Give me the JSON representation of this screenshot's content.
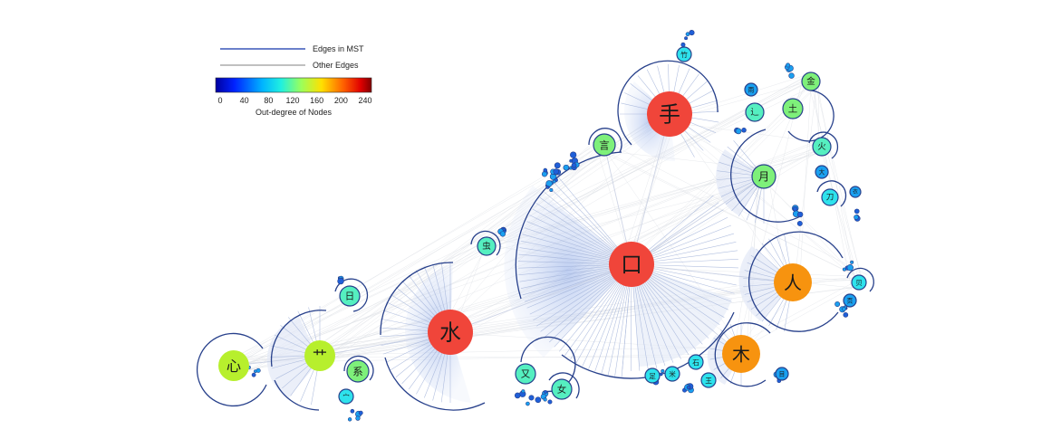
{
  "legend": {
    "mst_label": "Edges in MST",
    "other_label": "Other Edges",
    "colorbar_title": "Out-degree of Nodes",
    "ticks": [
      "0",
      "40",
      "80",
      "120",
      "160",
      "200",
      "240"
    ],
    "mst_color": "#3a57b8",
    "other_color": "#9a9a9a"
  },
  "colors": {
    "red": "#f0453a",
    "orange": "#f7930f",
    "yellow_green": "#b7ef2d",
    "light_green": "#7ef07a",
    "mint": "#55efc0",
    "cyan": "#2ee2ec",
    "blue": "#1aa0f0",
    "dark_blue": "#1f5fd8",
    "ring": "#27408b"
  },
  "nodes": [
    {
      "id": "kou",
      "label": "口",
      "tier": "red"
    },
    {
      "id": "shou",
      "label": "手",
      "tier": "red"
    },
    {
      "id": "shui",
      "label": "水",
      "tier": "red"
    },
    {
      "id": "ren",
      "label": "人",
      "tier": "orange"
    },
    {
      "id": "mu",
      "label": "木",
      "tier": "orange"
    },
    {
      "id": "xin",
      "label": "心",
      "tier": "yellow_green"
    },
    {
      "id": "cao",
      "label": "艹",
      "tier": "yellow_green"
    },
    {
      "id": "yue",
      "label": "月",
      "tier": "light_green"
    },
    {
      "id": "yan",
      "label": "言",
      "tier": "light_green"
    },
    {
      "id": "tu",
      "label": "土",
      "tier": "light_green"
    },
    {
      "id": "jin",
      "label": "金",
      "tier": "light_green"
    },
    {
      "id": "xi",
      "label": "系",
      "tier": "light_green"
    },
    {
      "id": "chong",
      "label": "虫",
      "tier": "mint"
    },
    {
      "id": "ri",
      "label": "日",
      "tier": "mint"
    },
    {
      "id": "huo",
      "label": "火",
      "tier": "mint"
    },
    {
      "id": "you",
      "label": "又",
      "tier": "mint"
    },
    {
      "id": "nv",
      "label": "女",
      "tier": "mint"
    },
    {
      "id": "chuo",
      "label": "辶",
      "tier": "mint"
    },
    {
      "id": "dao",
      "label": "刀",
      "tier": "cyan"
    },
    {
      "id": "bei",
      "label": "贝",
      "tier": "cyan"
    },
    {
      "id": "zhu",
      "label": "竹",
      "tier": "cyan"
    },
    {
      "id": "mian",
      "label": "宀",
      "tier": "cyan"
    },
    {
      "id": "mi",
      "label": "米",
      "tier": "cyan"
    },
    {
      "id": "shi",
      "label": "石",
      "tier": "cyan"
    },
    {
      "id": "wang",
      "label": "王",
      "tier": "cyan"
    },
    {
      "id": "zu",
      "label": "足",
      "tier": "cyan"
    },
    {
      "id": "da",
      "label": "大",
      "tier": "blue"
    },
    {
      "id": "ye",
      "label": "页",
      "tier": "blue"
    },
    {
      "id": "mu4",
      "label": "目",
      "tier": "blue"
    },
    {
      "id": "yu",
      "label": "雨",
      "tier": "blue"
    },
    {
      "id": "yi",
      "label": "衣",
      "tier": "blue"
    }
  ]
}
